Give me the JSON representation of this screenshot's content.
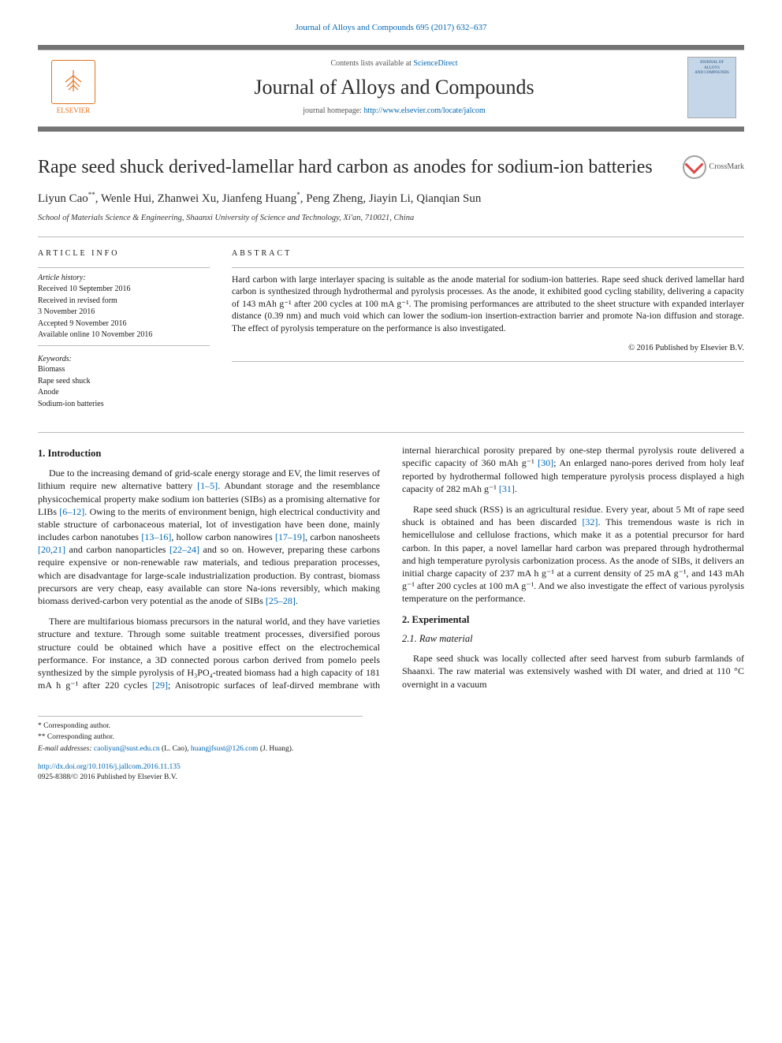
{
  "citation": {
    "journal_link_text": "Journal of Alloys and Compounds 695 (2017) 632–637"
  },
  "masthead": {
    "publisher_name": "ELSEVIER",
    "lists_prefix": "Contents lists available at ",
    "lists_link": "ScienceDirect",
    "journal_name": "Journal of Alloys and Compounds",
    "homepage_prefix": "journal homepage: ",
    "homepage_link": "http://www.elsevier.com/locate/jalcom",
    "cover_lines": [
      "JOURNAL OF",
      "ALLOYS",
      "AND COMPOUNDS"
    ]
  },
  "crossmark_label": "CrossMark",
  "title": "Rape seed shuck derived-lamellar hard carbon as anodes for sodium-ion batteries",
  "authors_html": "Liyun Cao<span class='super'>**</span>, Wenle Hui, Zhanwei Xu, Jianfeng Huang<span class='super'>*</span>, Peng Zheng, Jiayin Li, Qianqian Sun",
  "affiliation": "School of Materials Science & Engineering, Shaanxi University of Science and Technology, Xi'an, 710021, China",
  "article_info": {
    "head": "ARTICLE INFO",
    "history_label": "Article history:",
    "received": "Received 10 September 2016",
    "revised1": "Received in revised form",
    "revised2": "3 November 2016",
    "accepted": "Accepted 9 November 2016",
    "online": "Available online 10 November 2016",
    "keywords_label": "Keywords:",
    "keywords": [
      "Biomass",
      "Rape seed shuck",
      "Anode",
      "Sodium-ion batteries"
    ]
  },
  "abstract": {
    "head": "ABSTRACT",
    "text": "Hard carbon with large interlayer spacing is suitable as the anode material for sodium-ion batteries. Rape seed shuck derived lamellar hard carbon is synthesized through hydrothermal and pyrolysis processes. As the anode, it exhibited good cycling stability, delivering a capacity of 143 mAh g⁻¹ after 200 cycles at 100 mA g⁻¹. The promising performances are attributed to the sheet structure with expanded interlayer distance (0.39 nm) and much void which can lower the sodium-ion insertion-extraction barrier and promote Na-ion diffusion and storage. The effect of pyrolysis temperature on the performance is also investigated.",
    "copyright": "© 2016 Published by Elsevier B.V."
  },
  "sections": {
    "s1_head": "1. Introduction",
    "s1_p1_a": "Due to the increasing demand of grid-scale energy storage and EV, the limit reserves of lithium require new alternative battery ",
    "s1_p1_ref1": "[1–5]",
    "s1_p1_b": ". Abundant storage and the resemblance physicochemical property make sodium ion batteries (SIBs) as a promising alternative for LIBs ",
    "s1_p1_ref2": "[6–12]",
    "s1_p1_c": ". Owing to the merits of environment benign, high electrical conductivity and stable structure of carbonaceous material, lot of investigation have been done, mainly includes carbon nanotubes ",
    "s1_p1_ref3": "[13–16]",
    "s1_p1_d": ", hollow carbon nanowires ",
    "s1_p1_ref4": "[17–19]",
    "s1_p1_e": ", carbon nanosheets ",
    "s1_p1_ref5": "[20,21]",
    "s1_p1_f": " and carbon nanoparticles ",
    "s1_p1_ref6": "[22–24]",
    "s1_p1_g": " and so on. However, preparing these carbons require expensive or non-renewable raw materials, and tedious preparation processes, which are disadvantage for large-scale industrialization production. By contrast, biomass precursors are very cheap, easy available can store Na-ions reversibly, which making biomass derived-carbon very potential as the anode of SIBs ",
    "s1_p1_ref7": "[25–28]",
    "s1_p1_h": ".",
    "s1_p2": "There are multifarious biomass precursors in the natural world, and they have varieties structure and texture. Through some suitable treatment processes, diversified porous structure could be obtained which have a positive effect on the electrochemical performance. For instance, a 3D connected porous carbon derived from pomelo peels synthesized by the simple pyrolysis of H₃PO₄-treated biomass had a high capacity of 181 mA h g⁻¹ after 220 cycles ",
    "s1_p2_ref1": "[29]",
    "s1_p2_b": "; Anisotropic surfaces of leaf-dirved membrane with internal hierarchical porosity prepared by one-step thermal pyrolysis route delivered a specific capacity of 360 mAh g⁻¹ ",
    "s1_p2_ref2": "[30]",
    "s1_p2_c": "; An enlarged nano-pores derived from holy leaf reported by hydrothermal followed high temperature pyrolysis process displayed a high capacity of 282 mAh g⁻¹ ",
    "s1_p2_ref3": "[31]",
    "s1_p2_d": ".",
    "s1_p3_a": "Rape seed shuck (RSS) is an agricultural residue. Every year, about 5 Mt of rape seed shuck is obtained and has been discarded ",
    "s1_p3_ref1": "[32]",
    "s1_p3_b": ". This tremendous waste is rich in hemicellulose and cellulose fractions, which make it as a potential precursor for hard carbon. In this paper, a novel lamellar hard carbon was prepared through hydrothermal and high temperature pyrolysis carbonization process. As the anode of SIBs, it delivers an initial charge capacity of 237 mA h g⁻¹ at a current density of 25 mA g⁻¹, and 143 mAh g⁻¹ after 200 cycles at 100 mA g⁻¹. And we also investigate the effect of various pyrolysis temperature on the performance.",
    "s2_head": "2. Experimental",
    "s21_head": "2.1. Raw material",
    "s21_p1": "Rape seed shuck was locally collected after seed harvest from suburb farmlands of Shaanxi. The raw material was extensively washed with DI water, and dried at 110 °C overnight in a vacuum"
  },
  "footnotes": {
    "corr1": "* Corresponding author.",
    "corr2": "** Corresponding author.",
    "email_label": "E-mail addresses:",
    "email1": "caoliyun@sust.edu.cn",
    "email1_who": " (L. Cao), ",
    "email2": "huangjfsust@126.com",
    "email2_who": " (J. Huang)."
  },
  "bottom": {
    "doi": "http://dx.doi.org/10.1016/j.jallcom.2016.11.135",
    "issn_line": "0925-8388/© 2016 Published by Elsevier B.V."
  },
  "colors": {
    "link": "#0066b3",
    "bar": "#747474",
    "rule": "#bcbcbc",
    "elsevier_orange": "#e37222"
  }
}
